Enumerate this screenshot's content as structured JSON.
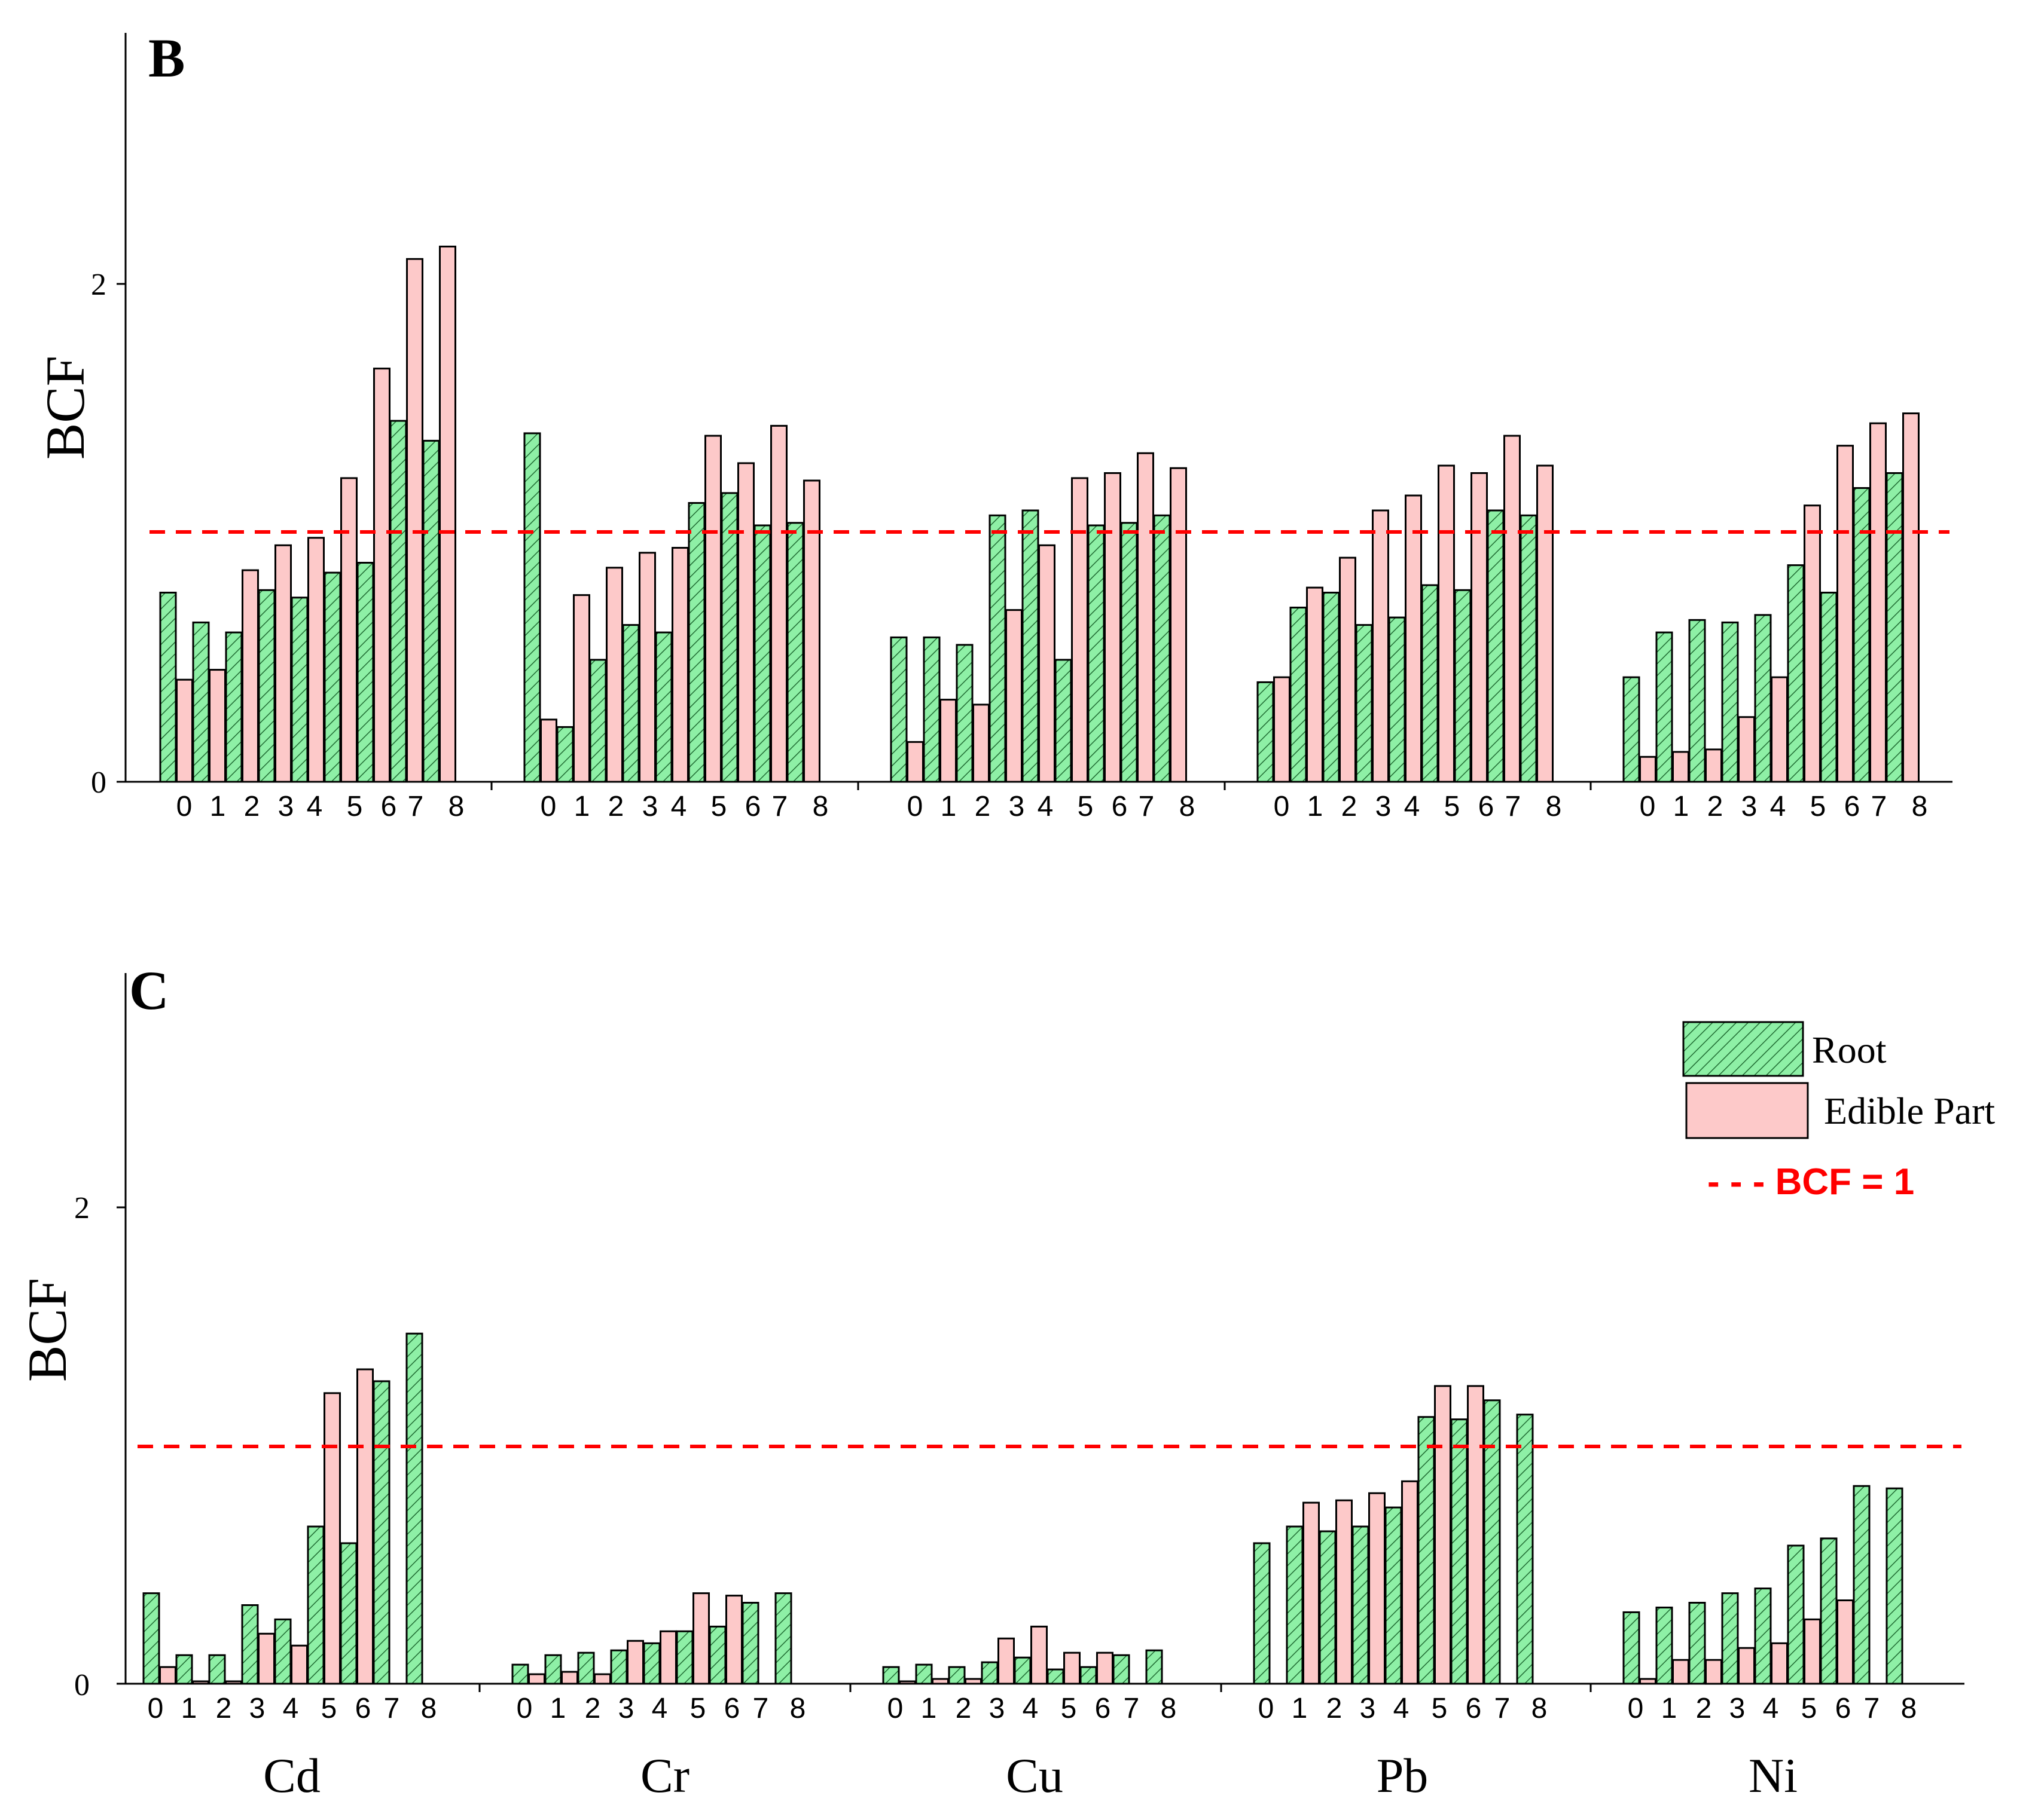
{
  "colors": {
    "root_fill": "#8ef0a6",
    "root_hatch": "#1f6b32",
    "edible_fill": "#fdc9c9",
    "reference_line": "#ff0000",
    "axis": "#000000"
  },
  "x_ticks": [
    "0",
    "1",
    "2",
    "3",
    "4",
    "5",
    "6",
    "7",
    "8"
  ],
  "elements": [
    "Cd",
    "Cr",
    "Cu",
    "Pb",
    "Ni"
  ],
  "legend": {
    "root": "Root",
    "edible": "Edible Part",
    "reference": "- - - BCF = 1"
  },
  "chart_data": [
    {
      "type": "bar",
      "panel": "B",
      "ylabel": "BCF",
      "ylim": [
        0,
        3.0
      ],
      "yticks": [
        0,
        2
      ],
      "ytick_labels": [
        "0",
        "2"
      ],
      "reference_line": 1,
      "groups": [
        {
          "element": "Cd",
          "ticks": [
            "0",
            "1",
            "2",
            "3",
            "4",
            "5",
            "6",
            "7",
            "8"
          ],
          "root": [
            0.76,
            0.64,
            0.6,
            0.77,
            0.74,
            0.84,
            0.88,
            1.45,
            1.37
          ],
          "edible": [
            0.41,
            0.45,
            0.85,
            0.95,
            0.98,
            1.22,
            1.66,
            2.1,
            2.15
          ]
        },
        {
          "element": "Cr",
          "ticks": [
            "0",
            "1",
            "2",
            "3",
            "4",
            "5",
            "6",
            "7",
            "8"
          ],
          "root": [
            1.4,
            0.22,
            0.49,
            0.63,
            0.6,
            1.12,
            1.16,
            1.03,
            1.04
          ],
          "edible": [
            0.25,
            0.75,
            0.86,
            0.92,
            0.94,
            1.39,
            1.28,
            1.43,
            1.21
          ]
        },
        {
          "element": "Cu",
          "ticks": [
            "0",
            "1",
            "2",
            "3",
            "4",
            "5",
            "6",
            "7",
            "8"
          ],
          "root": [
            0.58,
            0.58,
            0.55,
            1.07,
            1.09,
            0.49,
            1.03,
            1.04,
            1.07
          ],
          "edible": [
            0.16,
            0.33,
            0.31,
            0.69,
            0.95,
            1.22,
            1.24,
            1.32,
            1.26
          ]
        },
        {
          "element": "Pb",
          "ticks": [
            "0",
            "1",
            "2",
            "3",
            "4",
            "5",
            "6",
            "7",
            "8"
          ],
          "root": [
            0.4,
            0.7,
            0.76,
            0.63,
            0.66,
            0.79,
            0.77,
            1.09,
            1.07
          ],
          "edible": [
            0.42,
            0.78,
            0.9,
            1.09,
            1.15,
            1.27,
            1.24,
            1.39,
            1.27
          ]
        },
        {
          "element": "Ni",
          "ticks": [
            "0",
            "1",
            "2",
            "3",
            "4",
            "5",
            "6",
            "7",
            "8"
          ],
          "root": [
            0.42,
            0.6,
            0.65,
            0.64,
            0.67,
            0.87,
            0.76,
            1.18,
            1.24
          ],
          "edible": [
            0.1,
            0.12,
            0.13,
            0.26,
            0.42,
            1.11,
            1.35,
            1.44,
            1.48
          ]
        }
      ]
    },
    {
      "type": "bar",
      "panel": "C",
      "ylabel": "BCF",
      "ylim": [
        0,
        3.0
      ],
      "yticks": [
        0,
        2
      ],
      "ytick_labels": [
        "0",
        "2"
      ],
      "reference_line": 1,
      "groups": [
        {
          "element": "Cd",
          "ticks": [
            "0",
            "1",
            "2",
            "3",
            "4",
            "5",
            "6",
            "7",
            "8"
          ],
          "root": [
            0.38,
            0.12,
            0.12,
            0.33,
            0.27,
            0.66,
            0.59,
            1.27,
            1.47
          ],
          "edible": [
            0.07,
            0.01,
            0.01,
            0.21,
            0.16,
            1.22,
            1.32,
            null,
            null
          ]
        },
        {
          "element": "Cr",
          "ticks": [
            "0",
            "1",
            "2",
            "3",
            "4",
            "5",
            "6",
            "7",
            "8"
          ],
          "root": [
            0.08,
            0.12,
            0.13,
            0.14,
            0.17,
            0.22,
            0.24,
            0.34,
            0.38
          ],
          "edible": [
            0.04,
            0.05,
            0.04,
            0.18,
            0.22,
            0.38,
            0.37,
            null,
            null
          ]
        },
        {
          "element": "Cu",
          "ticks": [
            "0",
            "1",
            "2",
            "3",
            "4",
            "5",
            "6",
            "7",
            "8"
          ],
          "root": [
            0.07,
            0.08,
            0.07,
            0.09,
            0.11,
            0.06,
            0.07,
            0.12,
            0.14
          ],
          "edible": [
            0.01,
            0.02,
            0.02,
            0.19,
            0.24,
            0.13,
            0.13,
            null,
            null
          ]
        },
        {
          "element": "Pb",
          "ticks": [
            "0",
            "1",
            "2",
            "3",
            "4",
            "5",
            "6",
            "7",
            "8"
          ],
          "root": [
            0.59,
            0.66,
            0.64,
            0.66,
            0.74,
            1.12,
            1.11,
            1.19,
            1.13
          ],
          "edible": [
            0.0,
            0.76,
            0.77,
            0.8,
            0.85,
            1.25,
            1.25,
            null,
            null
          ]
        },
        {
          "element": "Ni",
          "ticks": [
            "0",
            "1",
            "2",
            "3",
            "4",
            "5",
            "6",
            "7",
            "8"
          ],
          "root": [
            0.3,
            0.32,
            0.34,
            0.38,
            0.4,
            0.58,
            0.61,
            0.83,
            0.82
          ],
          "edible": [
            0.02,
            0.1,
            0.1,
            0.15,
            0.17,
            0.27,
            0.35,
            null,
            null
          ]
        }
      ]
    }
  ]
}
